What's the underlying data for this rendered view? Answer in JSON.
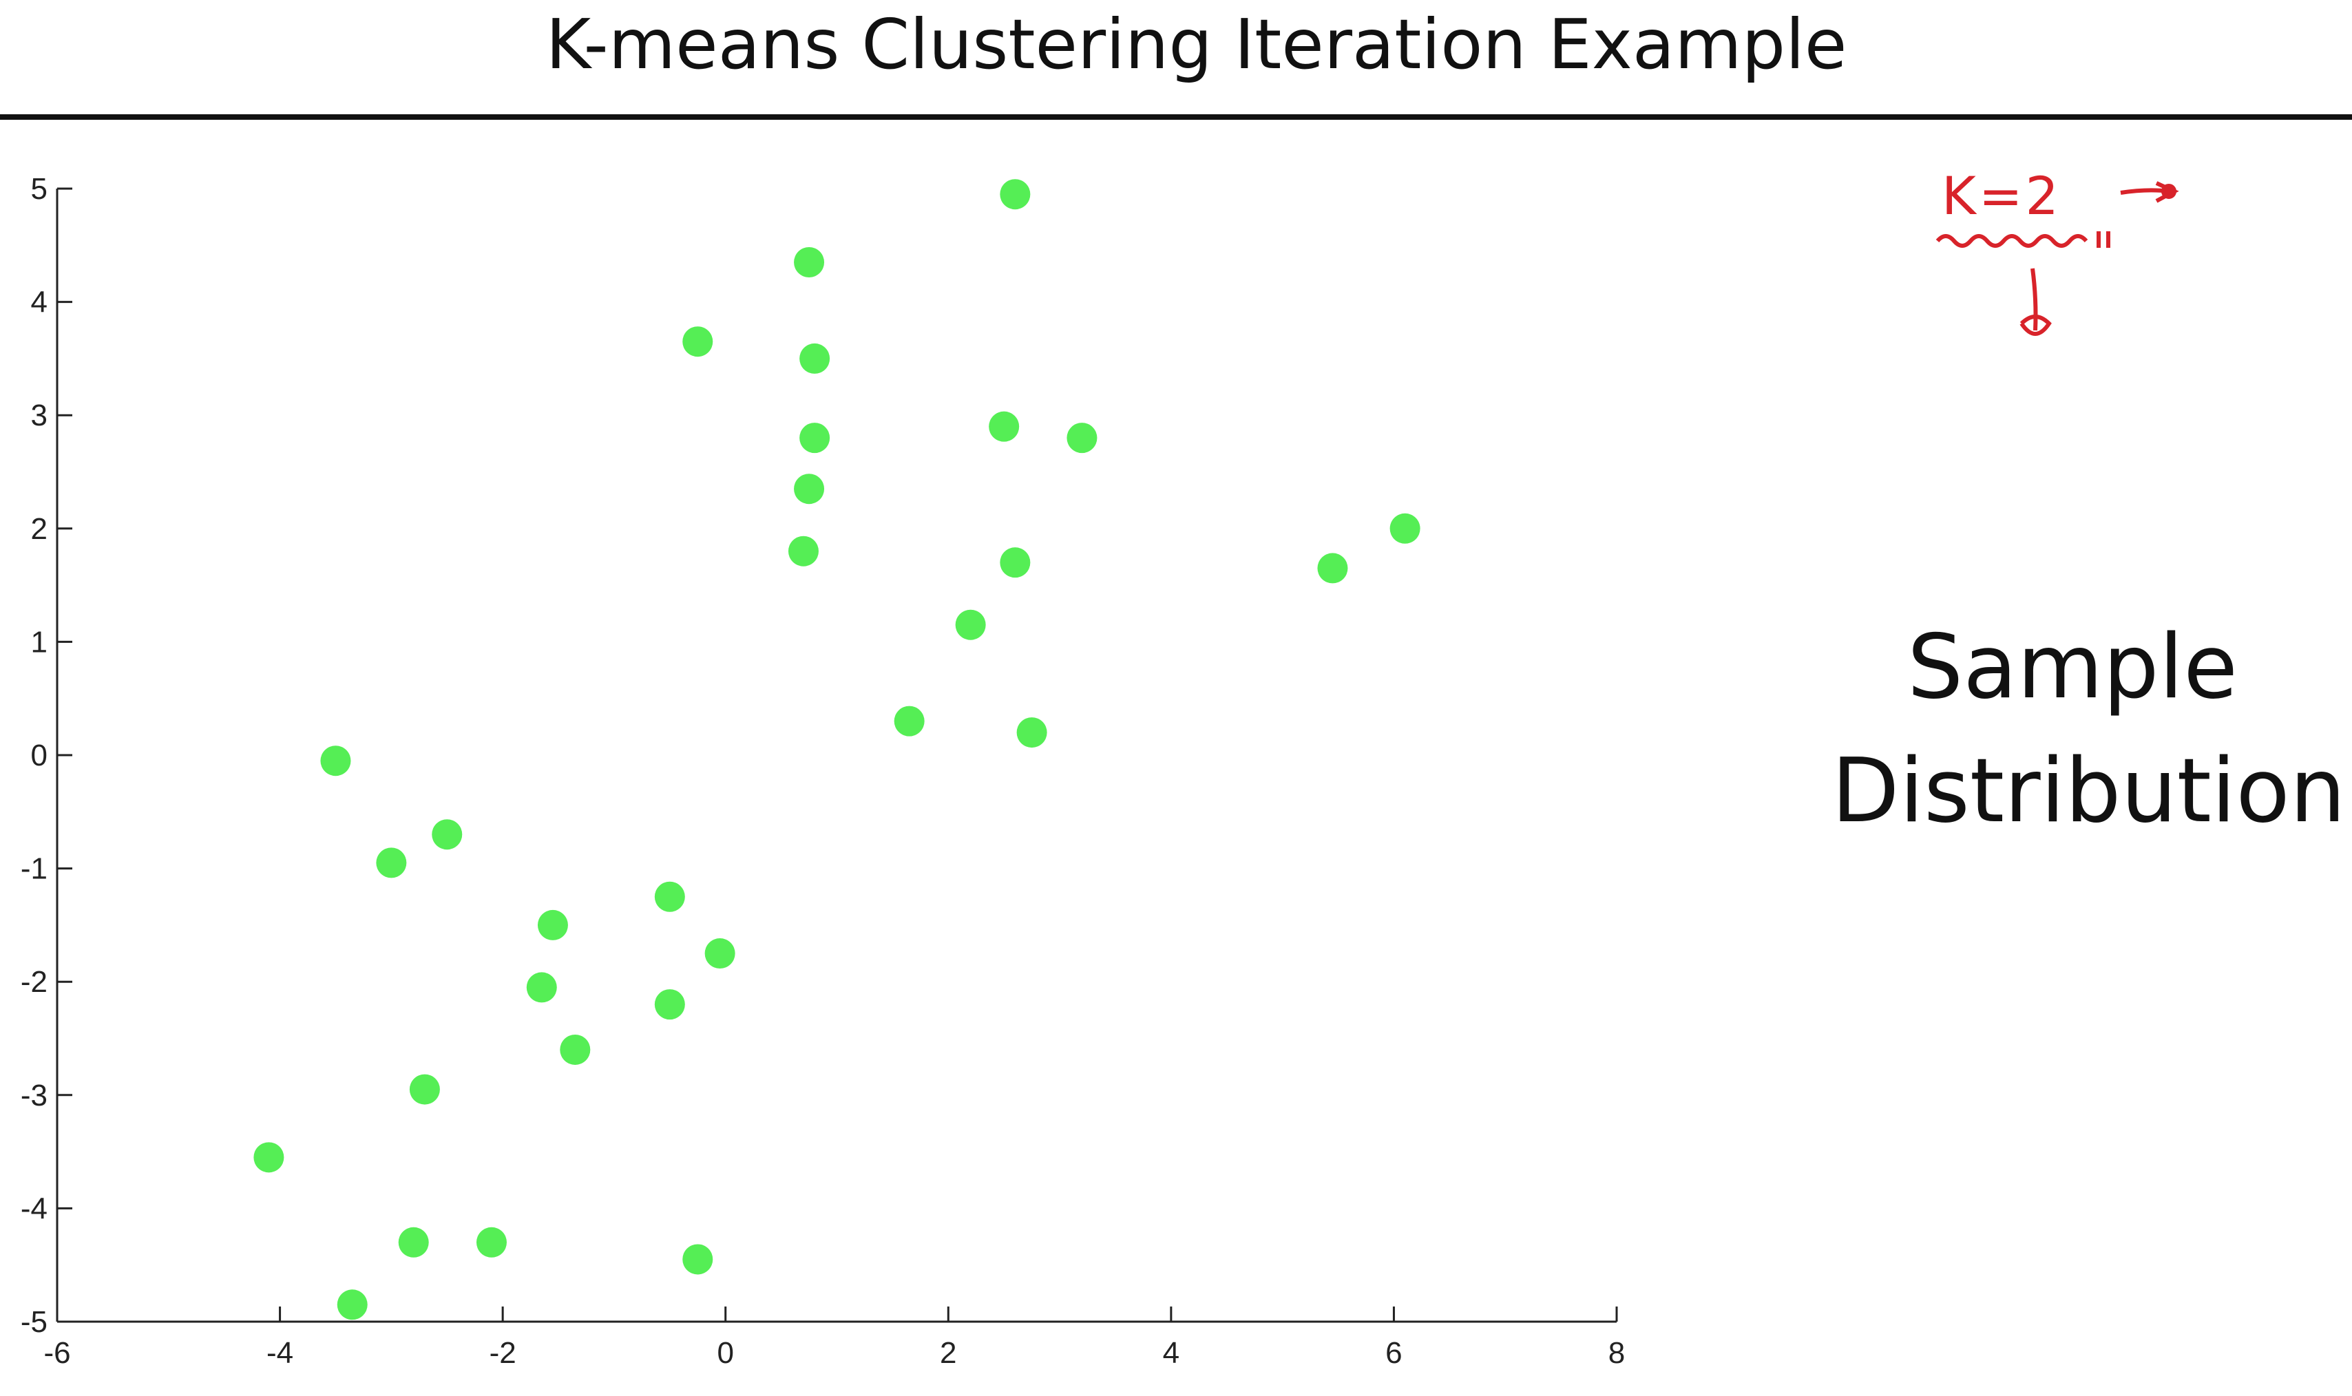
{
  "slide": {
    "title": "K-means Clustering Iteration Example",
    "side_label_line1": "Sample",
    "side_label_line2": "Distribution"
  },
  "annotation": {
    "text": "K=2",
    "color": "#d8232a",
    "icons": [
      "right-arrow-icon",
      "down-arrow-icon",
      "wavy-underline-icon"
    ]
  },
  "chart_data": {
    "type": "scatter",
    "title": "",
    "xlabel": "",
    "ylabel": "",
    "xlim": [
      -6,
      8
    ],
    "ylim": [
      -5,
      5
    ],
    "xticks": [
      -6,
      -4,
      -2,
      0,
      2,
      4,
      6,
      8
    ],
    "yticks": [
      5,
      4,
      3,
      2,
      1,
      0,
      -1,
      -2,
      -3,
      -4,
      -5
    ],
    "point_color": "#55ee55",
    "axis_color": "#222222",
    "grid": false,
    "legend": "none",
    "series": [
      {
        "points": [
          [
            2.6,
            4.95
          ],
          [
            0.75,
            4.35
          ],
          [
            -0.25,
            3.65
          ],
          [
            0.8,
            3.5
          ],
          [
            2.5,
            2.9
          ],
          [
            3.2,
            2.8
          ],
          [
            0.8,
            2.8
          ],
          [
            0.75,
            2.35
          ],
          [
            6.1,
            2.0
          ],
          [
            5.45,
            1.65
          ],
          [
            0.7,
            1.8
          ],
          [
            2.6,
            1.7
          ],
          [
            2.2,
            1.15
          ],
          [
            1.65,
            0.3
          ],
          [
            2.75,
            0.2
          ],
          [
            -3.5,
            -0.05
          ],
          [
            -2.5,
            -0.7
          ],
          [
            -3.0,
            -0.95
          ],
          [
            -0.5,
            -1.25
          ],
          [
            -1.55,
            -1.5
          ],
          [
            -0.05,
            -1.75
          ],
          [
            -1.65,
            -2.05
          ],
          [
            -0.5,
            -2.2
          ],
          [
            -1.35,
            -2.6
          ],
          [
            -2.7,
            -2.95
          ],
          [
            -4.1,
            -3.55
          ],
          [
            -2.8,
            -4.3
          ],
          [
            -2.1,
            -4.3
          ],
          [
            -0.25,
            -4.45
          ],
          [
            -3.35,
            -4.85
          ]
        ]
      }
    ]
  }
}
